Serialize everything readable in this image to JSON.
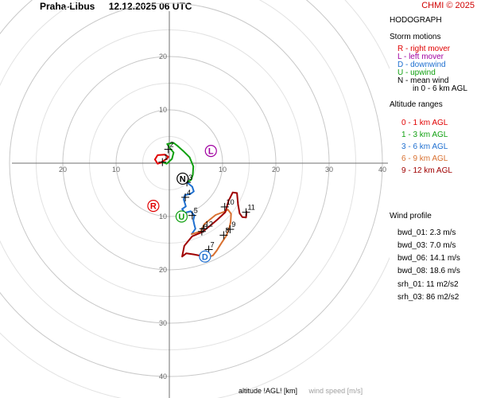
{
  "header": {
    "station": "Praha-Libus",
    "datetime": "12.12.2025 06 UTC",
    "copyright": "CHMI © 2025"
  },
  "panel": {
    "title": "HODOGRAPH",
    "storm_motions_title": "Storm motions",
    "storm_motions": [
      {
        "text": "R - right mover",
        "color": "#e00000"
      },
      {
        "text": "L - left mover",
        "color": "#a000a0"
      },
      {
        "text": "D - downwind",
        "color": "#1e6fd0"
      },
      {
        "text": "U - upwind",
        "color": "#10a010"
      },
      {
        "text": "N - mean wind",
        "color": "#000000"
      },
      {
        "text": "in 0 - 6 km AGL",
        "color": "#000000"
      }
    ],
    "altitude_title": "Altitude ranges",
    "altitude_ranges": [
      {
        "text": "0 - 1 km AGL",
        "color": "#e00000"
      },
      {
        "text": "1 - 3 km AGL",
        "color": "#10a010"
      },
      {
        "text": "3 - 6 km AGL",
        "color": "#1e6fd0"
      },
      {
        "text": "6 - 9 km AGL",
        "color": "#d87030"
      },
      {
        "text": "9 - 12 km AGL",
        "color": "#a00000"
      }
    ],
    "wind_profile_title": "Wind profile",
    "wind_profile": [
      "bwd_01: 2.3 m/s",
      "bwd_03: 7.0 m/s",
      "bwd_06: 14.1 m/s",
      "bwd_08: 18.6 m/s"
    ],
    "srh": [
      "srh_01: 11 m2/s2",
      "srh_03: 86 m2/s2"
    ]
  },
  "footer": {
    "altitude_label": "altitude !AGL! [km]",
    "speed_label": "wind speed [m/s]"
  },
  "chart_data": {
    "type": "line",
    "xlim": [
      -30,
      40
    ],
    "ylim": [
      -40,
      30
    ],
    "ring_labels": [
      "10",
      "20",
      "30",
      "40"
    ],
    "horizontal_tick_labels": [
      "20",
      "10",
      "10",
      "20",
      "30",
      "40"
    ],
    "vertical_tick_labels": [
      "20",
      "10",
      "10",
      "20",
      "30",
      "40"
    ],
    "grid": true,
    "series": [
      {
        "range": "0 - 1 km AGL",
        "color": "#e00000",
        "points": [
          [
            -1.8,
            0
          ],
          [
            -0.5,
            0.8
          ],
          [
            -0.2,
            1.2
          ],
          [
            -0.8,
            1.6
          ],
          [
            -2.2,
            1.5
          ],
          [
            -2.7,
            0.7
          ],
          [
            -2.2,
            -0.1
          ],
          [
            -1.3,
            0.2
          ]
        ]
      },
      {
        "range": "1 - 3 km AGL",
        "color": "#10a010",
        "points": [
          [
            -1.3,
            0.2
          ],
          [
            -0.5,
            -0.1
          ],
          [
            0.5,
            0.8
          ],
          [
            0.8,
            2.0
          ],
          [
            0.1,
            2.8
          ],
          [
            -0.4,
            3.6
          ],
          [
            0.8,
            3.8
          ],
          [
            1.6,
            3.2
          ],
          [
            2.6,
            2.3
          ],
          [
            3.8,
            1.1
          ],
          [
            4.5,
            -0.6
          ],
          [
            4.4,
            -2.2
          ],
          [
            4.1,
            -3.1
          ],
          [
            3.3,
            -3.6
          ]
        ]
      },
      {
        "range": "3 - 6 km AGL",
        "color": "#1e6fd0",
        "points": [
          [
            3.3,
            -3.6
          ],
          [
            4.3,
            -4.4
          ],
          [
            4.6,
            -5.3
          ],
          [
            3.9,
            -5.8
          ],
          [
            2.9,
            -6.0
          ],
          [
            2.7,
            -6.8
          ],
          [
            3.1,
            -8.1
          ],
          [
            2.4,
            -8.6
          ],
          [
            2.9,
            -9.3
          ],
          [
            4.0,
            -9.0
          ],
          [
            4.7,
            -9.8
          ],
          [
            4.5,
            -10.7
          ],
          [
            4.7,
            -11.6
          ],
          [
            4.9,
            -12.3
          ],
          [
            4.2,
            -13.3
          ]
        ]
      },
      {
        "range": "6 - 9 km AGL",
        "color": "#d87030",
        "points": [
          [
            4.2,
            -13.3
          ],
          [
            5.9,
            -12.8
          ],
          [
            6.6,
            -11.4
          ],
          [
            7.7,
            -10.5
          ],
          [
            8.7,
            -9.7
          ],
          [
            10.3,
            -9.1
          ],
          [
            11.0,
            -8.7
          ],
          [
            11.6,
            -9.5
          ],
          [
            11.5,
            -11.0
          ],
          [
            11.3,
            -12.0
          ],
          [
            10.7,
            -13.6
          ],
          [
            9.7,
            -15.1
          ],
          [
            8.9,
            -16.4
          ],
          [
            8.2,
            -17.3
          ],
          [
            7.1,
            -17.7
          ],
          [
            6.1,
            -17.4
          ]
        ]
      },
      {
        "range": "9 - 12 km AGL",
        "color": "#a00000",
        "points": [
          [
            6.1,
            -17.4
          ],
          [
            4.6,
            -17.1
          ],
          [
            3.2,
            -16.9
          ],
          [
            2.4,
            -17.5
          ],
          [
            2.8,
            -15.5
          ],
          [
            4.3,
            -13.7
          ],
          [
            6.2,
            -12.9
          ],
          [
            7.7,
            -11.7
          ],
          [
            9.0,
            -10.6
          ],
          [
            10.5,
            -9.2
          ],
          [
            11.1,
            -7.1
          ],
          [
            11.9,
            -5.5
          ],
          [
            12.7,
            -5.6
          ],
          [
            12.9,
            -7.7
          ],
          [
            13.2,
            -9.4
          ],
          [
            13.7,
            -10.1
          ],
          [
            14.4,
            -10.2
          ],
          [
            14.5,
            -9.1
          ]
        ]
      }
    ],
    "altitude_markers": [
      {
        "label": "1",
        "u": -1.3,
        "v": 0.2
      },
      {
        "label": "2",
        "u": -0.2,
        "v": 2.6
      },
      {
        "label": "3",
        "u": 3.3,
        "v": -3.6
      },
      {
        "label": "4",
        "u": 3.0,
        "v": -6.4
      },
      {
        "label": "5",
        "u": 4.3,
        "v": -9.8
      },
      {
        "label": "6",
        "u": 6.1,
        "v": -12.8
      },
      {
        "label": "7",
        "u": 7.4,
        "v": -16.2
      },
      {
        "label": "8",
        "u": 10.2,
        "v": -13.5
      },
      {
        "label": "9",
        "u": 11.4,
        "v": -12.4
      },
      {
        "label": "10",
        "u": 10.4,
        "v": -8.2
      },
      {
        "label": "11",
        "u": 14.4,
        "v": -9.2
      },
      {
        "label": "12",
        "u": 6.4,
        "v": -12.3
      }
    ],
    "storm_motions": [
      {
        "label": "R",
        "u": -3.0,
        "v": -8.0,
        "color": "#e00000"
      },
      {
        "label": "L",
        "u": 7.8,
        "v": 2.3,
        "color": "#a000a0"
      },
      {
        "label": "D",
        "u": 6.7,
        "v": -17.5,
        "color": "#1e6fd0"
      },
      {
        "label": "U",
        "u": 2.3,
        "v": -10.0,
        "color": "#10a010"
      },
      {
        "label": "N",
        "u": 2.5,
        "v": -2.9,
        "color": "#000000"
      }
    ]
  }
}
